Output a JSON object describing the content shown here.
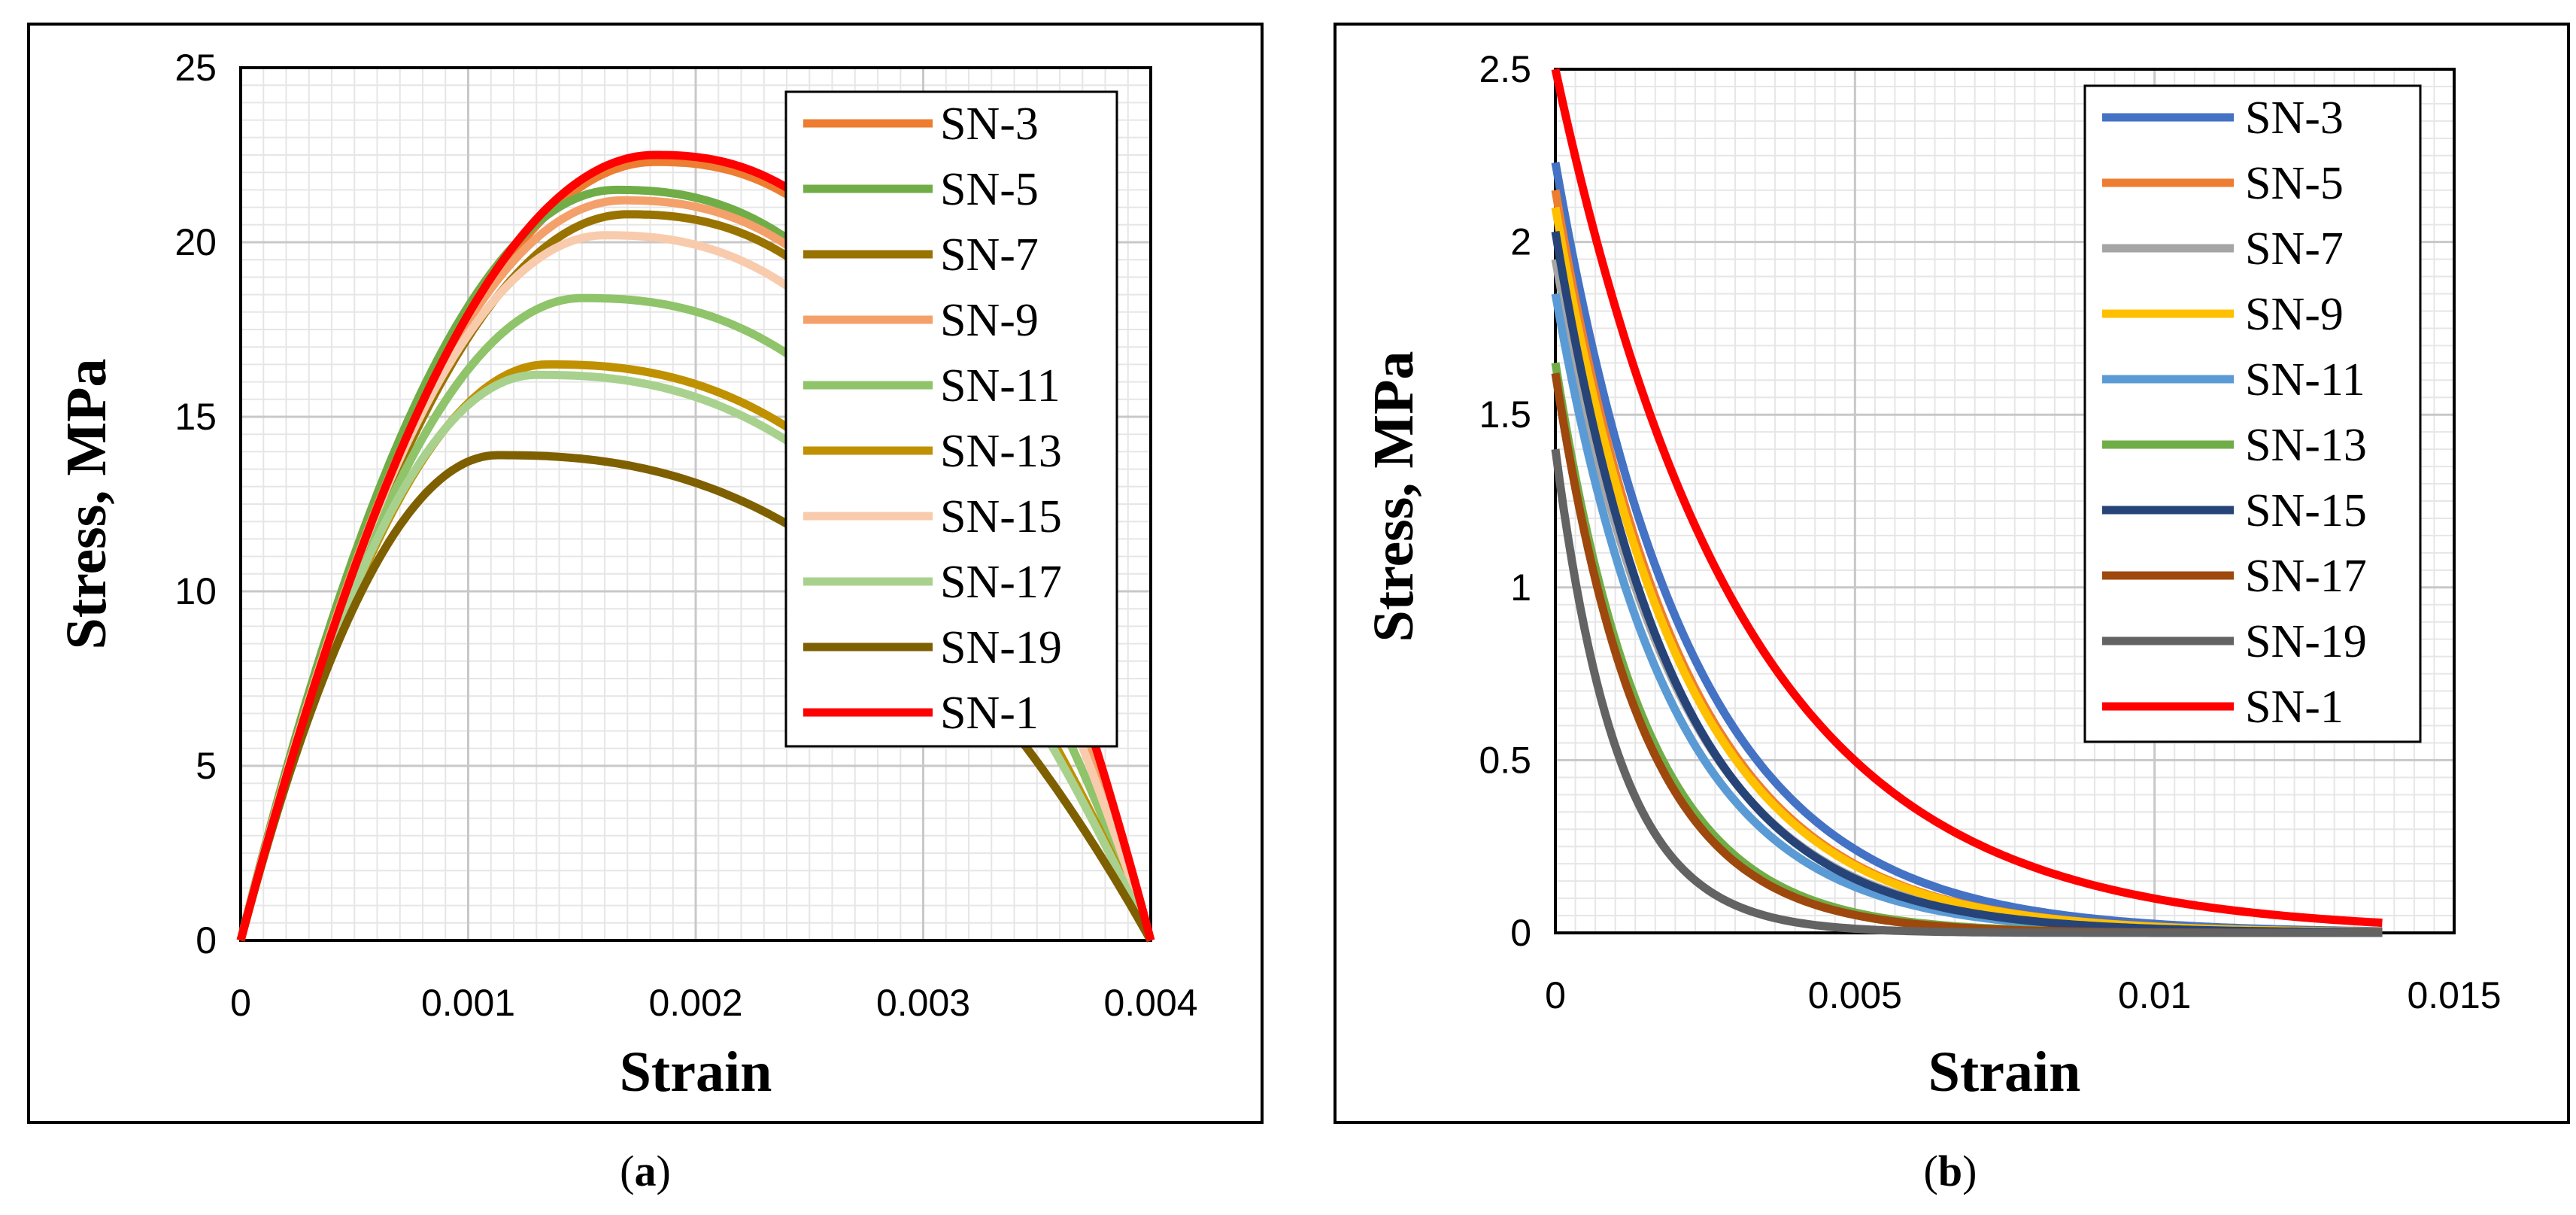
{
  "chart_data": [
    {
      "id": "a",
      "type": "line",
      "caption_open": "(",
      "caption_letter": "a",
      "caption_close": ")",
      "xlabel": "Strain",
      "ylabel": "Stress, MPa",
      "xlim": [
        0,
        0.004
      ],
      "ylim": [
        0,
        25
      ],
      "xticks": [
        0,
        0.001,
        0.002,
        0.003,
        0.004
      ],
      "xtick_labels": [
        "0",
        "0.001",
        "0.002",
        "0.003",
        "0.004"
      ],
      "yticks": [
        0,
        5,
        10,
        15,
        20,
        25
      ],
      "ytick_labels": [
        "0",
        "5",
        "10",
        "15",
        "20",
        "25"
      ],
      "grid": true,
      "legend_position": "top-right",
      "series": [
        {
          "name": "SN-3",
          "color": "#ED7D31",
          "peak_x": 0.00182,
          "peak_y": 22.3,
          "end_x": 0.004
        },
        {
          "name": "SN-5",
          "color": "#70AD47",
          "peak_x": 0.00165,
          "peak_y": 21.5,
          "end_x": 0.004
        },
        {
          "name": "SN-7",
          "color": "#997300",
          "peak_x": 0.0017,
          "peak_y": 20.8,
          "end_x": 0.004
        },
        {
          "name": "SN-9",
          "color": "#F4A06B",
          "peak_x": 0.00168,
          "peak_y": 21.2,
          "end_x": 0.004
        },
        {
          "name": "SN-11",
          "color": "#8FC46A",
          "peak_x": 0.0015,
          "peak_y": 18.4,
          "end_x": 0.004
        },
        {
          "name": "SN-13",
          "color": "#BF9000",
          "peak_x": 0.00135,
          "peak_y": 16.5,
          "end_x": 0.004
        },
        {
          "name": "SN-15",
          "color": "#F8CBAD",
          "peak_x": 0.0016,
          "peak_y": 20.2,
          "end_x": 0.004
        },
        {
          "name": "SN-17",
          "color": "#A9D18E",
          "peak_x": 0.0013,
          "peak_y": 16.2,
          "end_x": 0.004
        },
        {
          "name": "SN-19",
          "color": "#7F6000",
          "peak_x": 0.00113,
          "peak_y": 13.9,
          "end_x": 0.004
        },
        {
          "name": "SN-1",
          "color": "#FF0000",
          "peak_x": 0.00182,
          "peak_y": 22.5,
          "end_x": 0.004
        }
      ]
    },
    {
      "id": "b",
      "type": "line",
      "caption_open": "(",
      "caption_letter": "b",
      "caption_close": ")",
      "xlabel": "Strain",
      "ylabel": "Stress, MPa",
      "xlim": [
        0,
        0.015
      ],
      "ylim": [
        0,
        2.5
      ],
      "xticks": [
        0,
        0.005,
        0.01,
        0.015
      ],
      "xtick_labels": [
        "0",
        "0.005",
        "0.01",
        "0.015"
      ],
      "yticks": [
        0,
        0.5,
        1,
        1.5,
        2,
        2.5
      ],
      "ytick_labels": [
        "0",
        "0.5",
        "1",
        "1.5",
        "2",
        "2.5"
      ],
      "grid": true,
      "legend_position": "top-right",
      "x_end": 0.0138,
      "series": [
        {
          "name": "SN-3",
          "color": "#4472C4",
          "start_y": 2.23,
          "decay": 0.00225
        },
        {
          "name": "SN-5",
          "color": "#ED7D31",
          "start_y": 2.15,
          "decay": 0.0021
        },
        {
          "name": "SN-7",
          "color": "#A5A5A5",
          "start_y": 1.95,
          "decay": 0.002
        },
        {
          "name": "SN-9",
          "color": "#FFC000",
          "start_y": 2.1,
          "decay": 0.0021
        },
        {
          "name": "SN-11",
          "color": "#5B9BD5",
          "start_y": 1.85,
          "decay": 0.0019
        },
        {
          "name": "SN-13",
          "color": "#70AD47",
          "start_y": 1.65,
          "decay": 0.0015
        },
        {
          "name": "SN-15",
          "color": "#264478",
          "start_y": 2.03,
          "decay": 0.00195
        },
        {
          "name": "SN-17",
          "color": "#9E480E",
          "start_y": 1.62,
          "decay": 0.00145
        },
        {
          "name": "SN-19",
          "color": "#636363",
          "start_y": 1.4,
          "decay": 0.00105
        },
        {
          "name": "SN-1",
          "color": "#FF0000",
          "start_y": 2.5,
          "decay": 0.0031
        }
      ]
    }
  ]
}
